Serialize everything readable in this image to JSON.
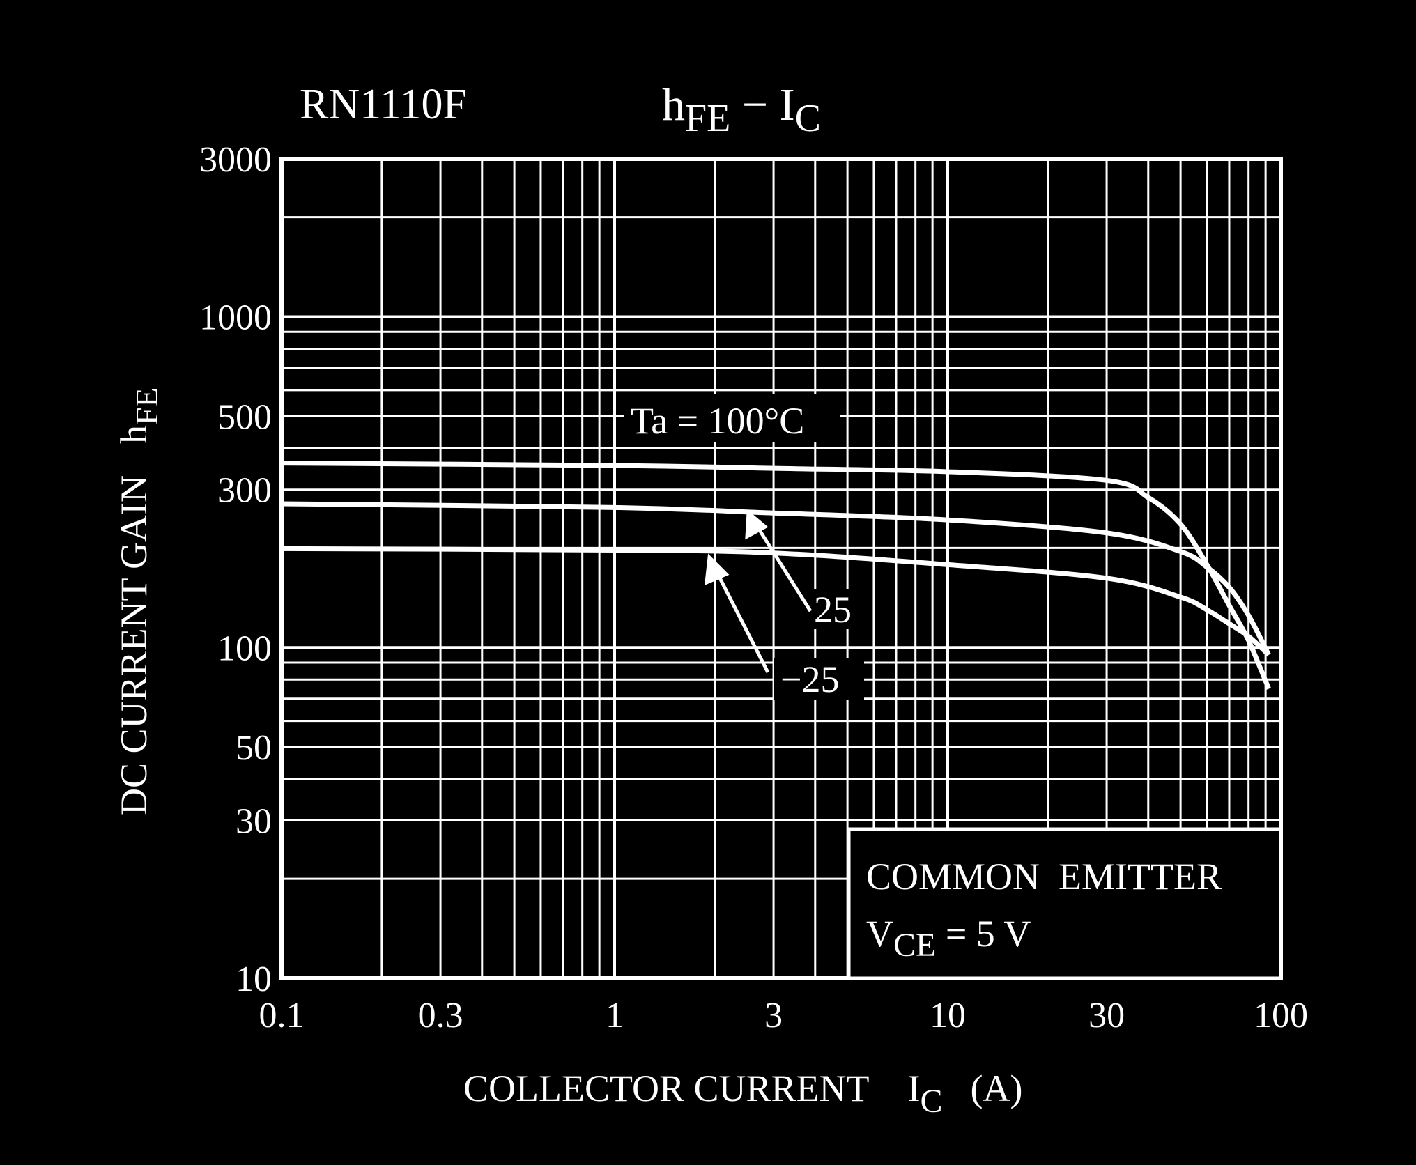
{
  "chart_data": {
    "type": "line",
    "part_number": "RN1110F",
    "title": {
      "main": "h",
      "main_sub": "FE",
      "sep": " − ",
      "second": "I",
      "second_sub": "C"
    },
    "xlabel": {
      "text": "COLLECTOR CURRENT",
      "symbol": "I",
      "symbol_sub": "C",
      "unit": "(A)"
    },
    "ylabel": {
      "text": "DC CURRENT GAIN",
      "symbol": "h",
      "symbol_sub": "FE"
    },
    "x_scale": "log",
    "y_scale": "log",
    "xlim": [
      0.1,
      100
    ],
    "ylim": [
      10,
      3000
    ],
    "x_ticks": [
      {
        "v": 0.1,
        "label": "0.1"
      },
      {
        "v": 0.3,
        "label": "0.3"
      },
      {
        "v": 1,
        "label": "1"
      },
      {
        "v": 3,
        "label": "3"
      },
      {
        "v": 10,
        "label": "10"
      },
      {
        "v": 30,
        "label": "30"
      },
      {
        "v": 100,
        "label": "100"
      }
    ],
    "y_ticks": [
      {
        "v": 10,
        "label": "10"
      },
      {
        "v": 30,
        "label": "30"
      },
      {
        "v": 50,
        "label": "50"
      },
      {
        "v": 100,
        "label": "100"
      },
      {
        "v": 300,
        "label": "300"
      },
      {
        "v": 500,
        "label": "500"
      },
      {
        "v": 1000,
        "label": "1000"
      },
      {
        "v": 3000,
        "label": "3000"
      }
    ],
    "grid": true,
    "colors": {
      "background": "#000000",
      "foreground": "#ffffff"
    },
    "series": [
      {
        "name": "Ta = 100°C",
        "x": [
          0.1,
          1,
          3,
          10,
          30,
          40,
          50,
          60,
          70,
          80,
          92
        ],
        "y": [
          361,
          355,
          348,
          340,
          320,
          284,
          236,
          178,
          134,
          105,
          75
        ]
      },
      {
        "name": "25",
        "x": [
          0.1,
          1,
          3,
          10,
          30,
          50,
          60,
          70,
          80,
          92
        ],
        "y": [
          272,
          265,
          255,
          243,
          222,
          195,
          175,
          152,
          125,
          95
        ]
      },
      {
        "name": "−25",
        "x": [
          0.1,
          1,
          3,
          10,
          30,
          50,
          60,
          70,
          80,
          92
        ],
        "y": [
          199,
          197,
          193,
          178,
          162,
          142,
          130,
          118,
          108,
          95
        ]
      }
    ],
    "annotations": {
      "ta_label": "Ta = 100°C",
      "label_25": "25",
      "label_m25": "−25",
      "condition_line1": "COMMON  EMITTER",
      "condition_v": "V",
      "condition_v_sub": "CE",
      "condition_v_value": " = 5 V"
    }
  }
}
